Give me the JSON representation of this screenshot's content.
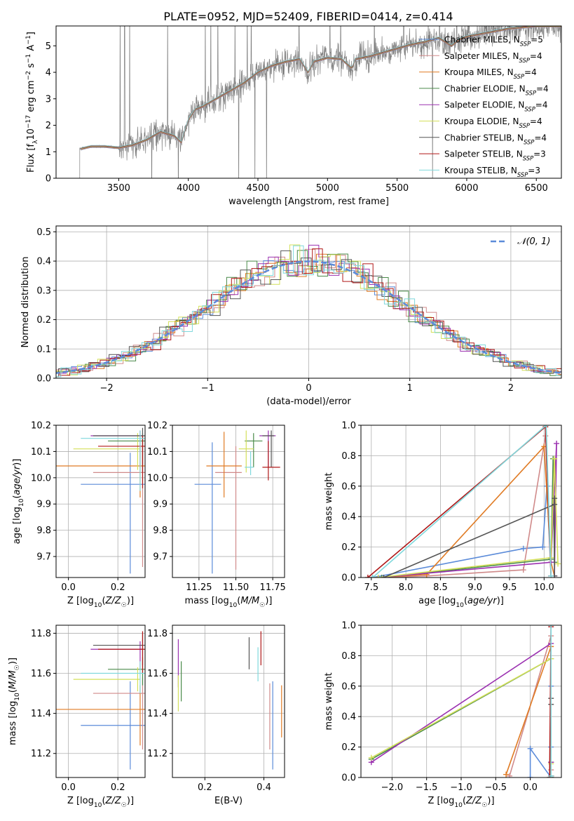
{
  "title": "PLATE=0952, MJD=52409, FIBERID=0414, z=0.414",
  "colors": {
    "chabrier_miles": "#5b8bd9",
    "salpeter_miles": "#d08a8a",
    "kroupa_miles": "#e07b24",
    "chabrier_elodie": "#4a8a4a",
    "salpeter_elodie": "#9b30b0",
    "kroupa_elodie": "#d4e05a",
    "chabrier_stelib": "#555555",
    "salpeter_stelib": "#b01818",
    "kroupa_stelib": "#7fd8dc",
    "spectrum": "#808080",
    "gaussian": "#5b8bd9",
    "grid": "#b0b0b0"
  },
  "chart_data": [
    {
      "type": "line",
      "xlabel": "wavelength [Angstrom, rest frame]",
      "ylabel": "Flux [f_λ 10^-17 erg cm^-2 s^-1 A^-1]",
      "xlim": [
        3050,
        6680
      ],
      "ylim": [
        0,
        5.75
      ],
      "xticks": [
        "3500",
        "4000",
        "4500",
        "5000",
        "5500",
        "6000",
        "6500"
      ],
      "yticks": [
        "0",
        "1",
        "2",
        "3",
        "4",
        "5"
      ],
      "grid": false,
      "legend_position": "right",
      "legend": [
        "Chabrier MILES, N_SSP=5",
        "Salpeter MILES, N_SSP=4",
        "Kroupa MILES, N_SSP=4",
        "Chabrier ELODIE, N_SSP=4",
        "Salpeter ELODIE, N_SSP=4",
        "Kroupa ELODIE, N_SSP=4",
        "Chabrier STELIB, N_SSP=4",
        "Salpeter STELIB, N_SSP=3",
        "Kroupa STELIB, N_SSP=3"
      ],
      "model_continuum": {
        "x": [
          3220,
          3260,
          3300,
          3400,
          3500,
          3600,
          3700,
          3800,
          3900,
          3950,
          4000,
          4050,
          4100,
          4200,
          4300,
          4400,
          4500,
          4600,
          4700,
          4800,
          4860,
          4900,
          5000,
          5100,
          5175,
          5200,
          5300,
          5400,
          5500,
          5600,
          5700,
          5800,
          5890,
          5950,
          6000,
          6100,
          6200,
          6300,
          6400,
          6500,
          6600,
          6680
        ],
        "y": [
          1.1,
          1.15,
          1.2,
          1.2,
          1.15,
          1.25,
          1.45,
          1.75,
          1.6,
          1.35,
          2.2,
          2.6,
          2.7,
          3.0,
          3.3,
          3.6,
          4.0,
          4.25,
          4.4,
          4.5,
          4.0,
          4.4,
          4.55,
          4.5,
          4.15,
          4.5,
          4.6,
          4.75,
          4.9,
          5.05,
          5.15,
          5.3,
          5.0,
          5.25,
          5.35,
          5.45,
          5.55,
          5.65,
          5.7,
          5.75,
          5.75,
          5.75
        ]
      },
      "spectrum_noise": {
        "x_start": 3220,
        "x_end": 6680,
        "noise_start_wavelength": 3500,
        "typical_scatter": 0.4
      }
    },
    {
      "type": "line",
      "xlabel": "(data-model)/error",
      "ylabel": "Normed distribution",
      "xlim": [
        -2.5,
        2.5
      ],
      "ylim": [
        0,
        0.52
      ],
      "xticks": [
        "−2",
        "−1",
        "0",
        "1",
        "2"
      ],
      "yticks": [
        "0.0",
        "0.1",
        "0.2",
        "0.3",
        "0.4",
        "0.5"
      ],
      "grid": true,
      "legend_position": "top-right",
      "legend": [
        "𝒩(0, 1)"
      ],
      "histogram_bin_width": 0.1,
      "histogram_series_count": 9
    },
    {
      "type": "scatter",
      "xlabel": "Z [log10(Z/Z☉)]",
      "ylabel": "age [log10(age/yr)]",
      "xlim": [
        -0.05,
        0.31
      ],
      "ylim": [
        9.62,
        10.2
      ],
      "xticks": [
        "0.0",
        "0.2"
      ],
      "yticks": [
        "9.7",
        "9.8",
        "9.9",
        "10.0",
        "10.1",
        "10.2"
      ],
      "grid": true,
      "series": [
        {
          "name": "Chabrier MILES",
          "x": 0.25,
          "xerr": [
            0.2,
            0.06
          ],
          "y": 9.975,
          "yerr": [
            0.34,
            0.12
          ]
        },
        {
          "name": "Salpeter MILES",
          "x": 0.3,
          "xerr": [
            0.2,
            0.02
          ],
          "y": 10.02,
          "yerr": [
            0.36,
            0.1
          ]
        },
        {
          "name": "Kroupa MILES",
          "x": 0.29,
          "xerr": [
            0.34,
            0.02
          ],
          "y": 10.045,
          "yerr": [
            0.12,
            0.08
          ]
        },
        {
          "name": "Chabrier ELODIE",
          "x": 0.3,
          "xerr": [
            0.14,
            0.01
          ],
          "y": 10.14,
          "yerr": [
            0.1,
            0.03
          ]
        },
        {
          "name": "Salpeter ELODIE",
          "x": 0.29,
          "xerr": [
            0.2,
            0.01
          ],
          "y": 10.16,
          "yerr": [
            0.12,
            0.02
          ]
        },
        {
          "name": "Kroupa ELODIE",
          "x": 0.28,
          "xerr": [
            0.26,
            0.01
          ],
          "y": 10.11,
          "yerr": [
            0.08,
            0.06
          ]
        },
        {
          "name": "Chabrier STELIB",
          "x": 0.3,
          "xerr": [
            0.2,
            0.01
          ],
          "y": 10.16,
          "yerr": [
            0.14,
            0.03
          ]
        },
        {
          "name": "Salpeter STELIB",
          "x": 0.3,
          "xerr": [
            0.18,
            0.01
          ],
          "y": 10.12,
          "yerr": [
            0.16,
            0.04
          ]
        },
        {
          "name": "Kroupa STELIB",
          "x": 0.29,
          "xerr": [
            0.24,
            0.02
          ],
          "y": 10.15,
          "yerr": [
            0.2,
            0.03
          ]
        }
      ]
    },
    {
      "type": "scatter",
      "xlabel": "mass [log10(M/M☉)]",
      "ylabel": "",
      "xlim": [
        11.07,
        11.83
      ],
      "ylim": [
        9.62,
        10.2
      ],
      "xticks": [
        "11.25",
        "11.50",
        "11.75"
      ],
      "yticks": [
        "9.7",
        "9.8",
        "9.9",
        "10.0",
        "10.1",
        "10.2"
      ],
      "grid": true,
      "series": [
        {
          "name": "Chabrier MILES",
          "x": 11.34,
          "xerr": [
            0.12,
            0.06
          ],
          "y": 9.975,
          "yerr": [
            0.34,
            0.16
          ]
        },
        {
          "name": "Salpeter MILES",
          "x": 11.5,
          "xerr": [
            0.14,
            0.04
          ],
          "y": 10.02,
          "yerr": [
            0.37,
            0.1
          ]
        },
        {
          "name": "Kroupa MILES",
          "x": 11.42,
          "xerr": [
            0.12,
            0.12
          ],
          "y": 10.045,
          "yerr": [
            0.12,
            0.13
          ]
        },
        {
          "name": "Chabrier ELODIE",
          "x": 11.62,
          "xerr": [
            0.06,
            0.06
          ],
          "y": 10.14,
          "yerr": [
            0.1,
            0.03
          ]
        },
        {
          "name": "Salpeter ELODIE",
          "x": 11.72,
          "xerr": [
            0.06,
            0.05
          ],
          "y": 10.16,
          "yerr": [
            0.12,
            0.02
          ]
        },
        {
          "name": "Kroupa ELODIE",
          "x": 11.57,
          "xerr": [
            0.05,
            0.05
          ],
          "y": 10.11,
          "yerr": [
            0.09,
            0.07
          ]
        },
        {
          "name": "Chabrier STELIB",
          "x": 11.74,
          "xerr": [
            0.06,
            0.02
          ],
          "y": 10.16,
          "yerr": [
            0.12,
            0.02
          ]
        },
        {
          "name": "Salpeter STELIB",
          "x": 11.72,
          "xerr": [
            0.04,
            0.08
          ],
          "y": 10.04,
          "yerr": [
            0.05,
            0.1
          ]
        },
        {
          "name": "Kroupa STELIB",
          "x": 11.6,
          "xerr": [
            0.04,
            0.02
          ],
          "y": 10.04,
          "yerr": [
            0.03,
            0.06
          ]
        }
      ]
    },
    {
      "type": "line",
      "xlabel": "age [log10(age/yr)]",
      "ylabel": "mass weight",
      "xlim": [
        7.35,
        10.25
      ],
      "ylim": [
        0,
        1
      ],
      "xticks": [
        "7.5",
        "8.0",
        "8.5",
        "9.0",
        "9.5",
        "10.0"
      ],
      "yticks": [
        "0.0",
        "0.2",
        "0.4",
        "0.6",
        "0.8",
        "1.0"
      ],
      "grid": true,
      "series": [
        {
          "name": "Chabrier MILES",
          "x": [
            7.52,
            9.7,
            9.98,
            10.04,
            10.1
          ],
          "y": [
            0.0,
            0.19,
            0.2,
            0.6,
            0.01
          ]
        },
        {
          "name": "Salpeter MILES",
          "x": [
            7.6,
            8.3,
            9.7,
            10.02,
            10.1
          ],
          "y": [
            0.0,
            0.01,
            0.05,
            0.93,
            0.01
          ]
        },
        {
          "name": "Kroupa MILES",
          "x": [
            7.6,
            8.3,
            10.0,
            10.1,
            10.15
          ],
          "y": [
            0.0,
            0.02,
            0.86,
            0.1,
            0.01
          ]
        },
        {
          "name": "Chabrier ELODIE",
          "x": [
            7.65,
            10.1,
            10.13,
            10.15
          ],
          "y": [
            0.0,
            0.12,
            0.78,
            0.1
          ]
        },
        {
          "name": "Salpeter ELODIE",
          "x": [
            7.6,
            10.1,
            10.18,
            10.15
          ],
          "y": [
            0.0,
            0.1,
            0.88,
            0.01
          ]
        },
        {
          "name": "Kroupa ELODIE",
          "x": [
            7.6,
            10.1,
            10.15,
            10.2
          ],
          "y": [
            0.0,
            0.13,
            0.78,
            0.09
          ]
        },
        {
          "name": "Chabrier STELIB",
          "x": [
            7.68,
            10.15,
            10.15,
            10.15
          ],
          "y": [
            0.0,
            0.48,
            0.52,
            0.01
          ]
        },
        {
          "name": "Salpeter STELIB",
          "x": [
            7.45,
            10.02,
            10.1
          ],
          "y": [
            0.0,
            0.99,
            0.01
          ]
        },
        {
          "name": "Kroupa STELIB",
          "x": [
            7.52,
            10.03,
            10.1
          ],
          "y": [
            0.0,
            1.0,
            0.01
          ]
        }
      ]
    },
    {
      "type": "scatter",
      "xlabel": "Z [log10(Z/Z☉)]",
      "ylabel": "mass [log10(M/M☉)]",
      "xlim": [
        -0.05,
        0.31
      ],
      "ylim": [
        11.08,
        11.84
      ],
      "xticks": [
        "0.0",
        "0.2"
      ],
      "yticks": [
        "11.2",
        "11.4",
        "11.6",
        "11.8"
      ],
      "grid": true,
      "series": [
        {
          "name": "Chabrier MILES",
          "x": 0.25,
          "xerr": [
            0.2,
            0.06
          ],
          "y": 11.34,
          "yerr": [
            0.22,
            0.22
          ]
        },
        {
          "name": "Salpeter MILES",
          "x": 0.3,
          "xerr": [
            0.2,
            0.02
          ],
          "y": 11.5,
          "yerr": [
            0.28,
            0.08
          ]
        },
        {
          "name": "Kroupa MILES",
          "x": 0.29,
          "xerr": [
            0.34,
            0.02
          ],
          "y": 11.42,
          "yerr": [
            0.18,
            0.12
          ]
        },
        {
          "name": "Chabrier ELODIE",
          "x": 0.3,
          "xerr": [
            0.14,
            0.01
          ],
          "y": 11.62,
          "yerr": [
            0.08,
            0.06
          ]
        },
        {
          "name": "Salpeter ELODIE",
          "x": 0.29,
          "xerr": [
            0.2,
            0.01
          ],
          "y": 11.72,
          "yerr": [
            0.1,
            0.04
          ]
        },
        {
          "name": "Kroupa ELODIE",
          "x": 0.28,
          "xerr": [
            0.26,
            0.01
          ],
          "y": 11.57,
          "yerr": [
            0.06,
            0.06
          ]
        },
        {
          "name": "Chabrier STELIB",
          "x": 0.3,
          "xerr": [
            0.2,
            0.01
          ],
          "y": 11.74,
          "yerr": [
            0.1,
            0.06
          ]
        },
        {
          "name": "Salpeter STELIB",
          "x": 0.3,
          "xerr": [
            0.18,
            0.01
          ],
          "y": 11.72,
          "yerr": [
            0.12,
            0.09
          ]
        },
        {
          "name": "Kroupa STELIB",
          "x": 0.29,
          "xerr": [
            0.24,
            0.02
          ],
          "y": 11.6,
          "yerr": [
            0.1,
            0.06
          ]
        }
      ]
    },
    {
      "type": "scatter",
      "xlabel": "E(B-V)",
      "ylabel": "",
      "xlim": [
        0.09,
        0.47
      ],
      "ylim": [
        11.08,
        11.84
      ],
      "xticks": [
        "0.2",
        "0.4"
      ],
      "yticks": [
        "11.2",
        "11.4",
        "11.6",
        "11.8"
      ],
      "grid": true,
      "series": [
        {
          "name": "Chabrier MILES",
          "x": 0.43,
          "y": 11.34,
          "yerr": [
            0.22,
            0.22
          ]
        },
        {
          "name": "Salpeter MILES",
          "x": 0.42,
          "y": 11.5,
          "yerr": [
            0.28,
            0.05
          ]
        },
        {
          "name": "Kroupa MILES",
          "x": 0.46,
          "y": 11.42,
          "yerr": [
            0.14,
            0.12
          ]
        },
        {
          "name": "Chabrier ELODIE",
          "x": 0.12,
          "y": 11.58,
          "yerr": [
            0.12,
            0.08
          ]
        },
        {
          "name": "Salpeter ELODIE",
          "x": 0.11,
          "y": 11.65,
          "yerr": [
            0.12,
            0.12
          ]
        },
        {
          "name": "Kroupa ELODIE",
          "x": 0.11,
          "y": 11.52,
          "yerr": [
            0.11,
            0.07
          ]
        },
        {
          "name": "Chabrier STELIB",
          "x": 0.35,
          "y": 11.72,
          "yerr": [
            0.1,
            0.06
          ]
        },
        {
          "name": "Salpeter STELIB",
          "x": 0.39,
          "y": 11.72,
          "yerr": [
            0.08,
            0.09
          ]
        },
        {
          "name": "Kroupa STELIB",
          "x": 0.38,
          "y": 11.62,
          "yerr": [
            0.06,
            0.11
          ]
        }
      ]
    },
    {
      "type": "line",
      "xlabel": "Z [log10(Z/Z☉)]",
      "ylabel": "mass weight",
      "xlim": [
        -2.45,
        0.45
      ],
      "ylim": [
        0,
        1
      ],
      "xticks": [
        "−2.0",
        "−1.5",
        "−1.0",
        "−0.5",
        "0.0"
      ],
      "yticks": [
        "0.0",
        "0.2",
        "0.4",
        "0.6",
        "0.8",
        "1.0"
      ],
      "grid": true,
      "series": [
        {
          "name": "Chabrier MILES",
          "x": [
            0.0,
            0.0,
            0.3,
            0.3,
            0.3
          ],
          "y": [
            0.0,
            0.19,
            0.0,
            0.6,
            0.2
          ]
        },
        {
          "name": "Salpeter MILES",
          "x": [
            -0.3,
            0.3,
            0.3,
            0.3
          ],
          "y": [
            0.01,
            0.93,
            0.05,
            0.01
          ]
        },
        {
          "name": "Kroupa MILES",
          "x": [
            -0.35,
            0.3,
            0.3,
            0.3
          ],
          "y": [
            0.02,
            0.86,
            0.1,
            0.01
          ]
        },
        {
          "name": "Chabrier ELODIE",
          "x": [
            -2.3,
            0.3,
            0.3,
            0.3
          ],
          "y": [
            0.12,
            0.78,
            0.1,
            0.0
          ]
        },
        {
          "name": "Salpeter ELODIE",
          "x": [
            -2.3,
            0.3,
            0.3,
            0.3
          ],
          "y": [
            0.1,
            0.88,
            0.1,
            0.01
          ]
        },
        {
          "name": "Kroupa ELODIE",
          "x": [
            -2.3,
            0.3,
            0.3,
            0.3
          ],
          "y": [
            0.13,
            0.78,
            0.09,
            0.0
          ]
        },
        {
          "name": "Chabrier STELIB",
          "x": [
            0.3,
            0.3,
            0.3,
            0.3
          ],
          "y": [
            0.0,
            0.48,
            0.52,
            0.01
          ]
        },
        {
          "name": "Salpeter STELIB",
          "x": [
            0.28,
            0.3,
            0.3
          ],
          "y": [
            0.0,
            0.99,
            0.01
          ]
        },
        {
          "name": "Kroupa STELIB",
          "x": [
            0.3,
            0.3,
            0.3
          ],
          "y": [
            0.0,
            1.0,
            0.01
          ]
        }
      ]
    }
  ]
}
